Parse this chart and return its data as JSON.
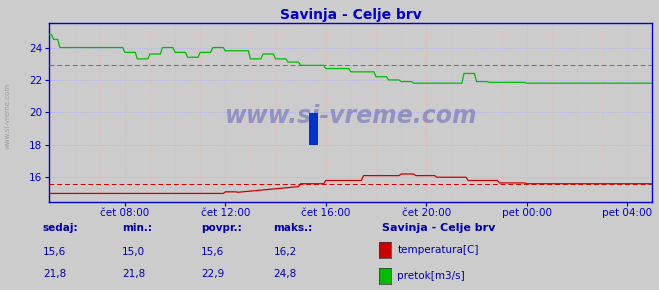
{
  "title": "Savinja - Celje brv",
  "title_color": "#0000cc",
  "bg_color": "#cccccc",
  "plot_bg_color": "#cccccc",
  "yticks": [
    16,
    18,
    20,
    22,
    24
  ],
  "xtick_labels": [
    "čet 08:00",
    "čet 12:00",
    "čet 16:00",
    "čet 20:00",
    "pet 00:00",
    "pet 04:00"
  ],
  "xtick_positions": [
    36,
    84,
    132,
    180,
    228,
    276
  ],
  "xlim": [
    0,
    288
  ],
  "ylim": [
    14.5,
    25.5
  ],
  "red_dashed_y": 15.6,
  "green_dashed_y": 22.9,
  "watermark": "www.si-vreme.com",
  "legend_title": "Savinja - Celje brv",
  "legend_items": [
    {
      "label": "temperatura[C]",
      "color": "#cc0000"
    },
    {
      "label": "pretok[m3/s]",
      "color": "#00bb00"
    }
  ],
  "footer_labels": [
    "sedaj:",
    "min.:",
    "povpr.:",
    "maks.:"
  ],
  "footer_temp": [
    "15,6",
    "15,0",
    "15,6",
    "16,2"
  ],
  "footer_flow": [
    "21,8",
    "21,8",
    "22,9",
    "24,8"
  ],
  "footer_color": "#0000aa",
  "grid_color_v": "#ffaaaa",
  "grid_color_h": "#aaaaff",
  "axis_color": "#0000cc",
  "temp_color": "#cc0000",
  "flow_color": "#00bb00",
  "left_label": "www.si-vreme.com"
}
